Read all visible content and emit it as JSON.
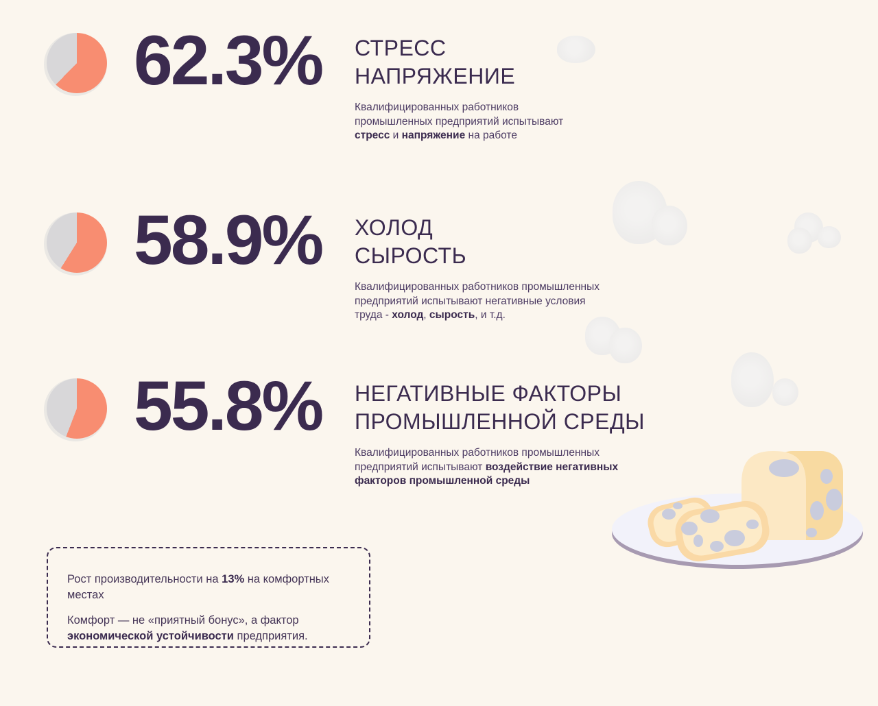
{
  "page": {
    "background_color": "#FBF6EE",
    "language": "ru"
  },
  "colors": {
    "accent_coral": "#F88D71",
    "pie_rest_gray": "#D8D7D9",
    "pie_base_gray": "#EAE8E4",
    "ink_purple": "#3B2B4F",
    "body_text": "#4C3B63",
    "cloud_gray": "#EFEEED",
    "plate_fill": "#F2F2FA",
    "plate_rim": "#A79AB1",
    "bread_front": "#FCE8C4",
    "bread_side": "#F8DAA1",
    "mold_gray": "#C9CCDD"
  },
  "stats": [
    {
      "value": "62.3%",
      "percent": 62.3,
      "title": "СТРЕСС\nНАПРЯЖЕНИЕ",
      "description": [
        {
          "t": "Квалифицированных работников\nпромышленных предприятий испытывают\n"
        },
        {
          "t": "стресс",
          "b": true
        },
        {
          "t": " и "
        },
        {
          "t": "напряжение",
          "b": true
        },
        {
          "t": " на работе"
        }
      ]
    },
    {
      "value": "58.9%",
      "percent": 58.9,
      "title": "ХОЛОД\nСЫРОСТЬ",
      "description": [
        {
          "t": "Квалифицированных работников промышленных\nпредприятий испытывают негативные условия\nтруда - "
        },
        {
          "t": "холод",
          "b": true
        },
        {
          "t": ", "
        },
        {
          "t": "сырость",
          "b": true
        },
        {
          "t": ", и т.д."
        }
      ]
    },
    {
      "value": "55.8%",
      "percent": 55.8,
      "title": "НЕГАТИВНЫЕ ФАКТОРЫ\nПРОМЫШЛЕННОЙ СРЕДЫ",
      "description": [
        {
          "t": "Квалифицированных работников промышленных\nпредприятий испытывают "
        },
        {
          "t": "воздействие негативных\nфакторов промышленной среды",
          "b": true
        }
      ]
    }
  ],
  "note_box": {
    "line1": [
      {
        "t": "Рост производительности на "
      },
      {
        "t": "13%",
        "b": true
      },
      {
        "t": " на комфортных местах"
      }
    ],
    "line2": [
      {
        "t": "Комфорт — не «приятный бонус», а фактор\n"
      },
      {
        "t": "экономической устойчивости",
        "b": true
      },
      {
        "t": " предприятия."
      }
    ]
  },
  "icons": {
    "pie": "pie-chart-icon",
    "steam": "steam-cloud",
    "illustration": "moldy-bread-on-plate"
  },
  "chart_data": {
    "type": "pie",
    "unit": "%",
    "start_angle": "12 o'clock, clockwise",
    "filled_color": "#F88D71",
    "rest_color": "#D8D7D9",
    "charts": [
      {
        "label": "СТРЕСС НАПРЯЖЕНИЕ",
        "value": 62.3,
        "rest": 37.7
      },
      {
        "label": "ХОЛОД СЫРОСТЬ",
        "value": 58.9,
        "rest": 41.1
      },
      {
        "label": "НЕГАТИВНЫЕ ФАКТОРЫ ПРОМЫШЛЕННОЙ СРЕДЫ",
        "value": 55.8,
        "rest": 44.2
      }
    ],
    "note": "Рост производительности на 13% на комфортных местах"
  }
}
